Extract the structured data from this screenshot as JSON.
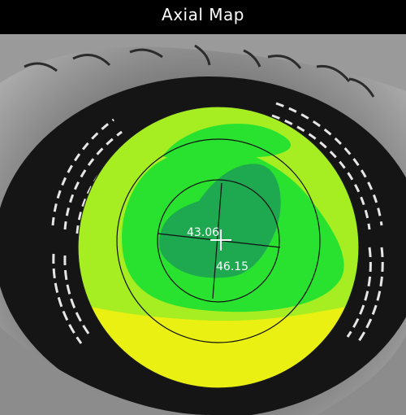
{
  "header": {
    "title": "Axial Map"
  },
  "map": {
    "type": "axial-topography",
    "k_flat": "43.06",
    "k_steep": "46.15",
    "zone_colors": {
      "central": "#1ea84f",
      "mid": "#29e22f",
      "outer_green": "#a6ee22",
      "lower": "#eaf112"
    }
  }
}
